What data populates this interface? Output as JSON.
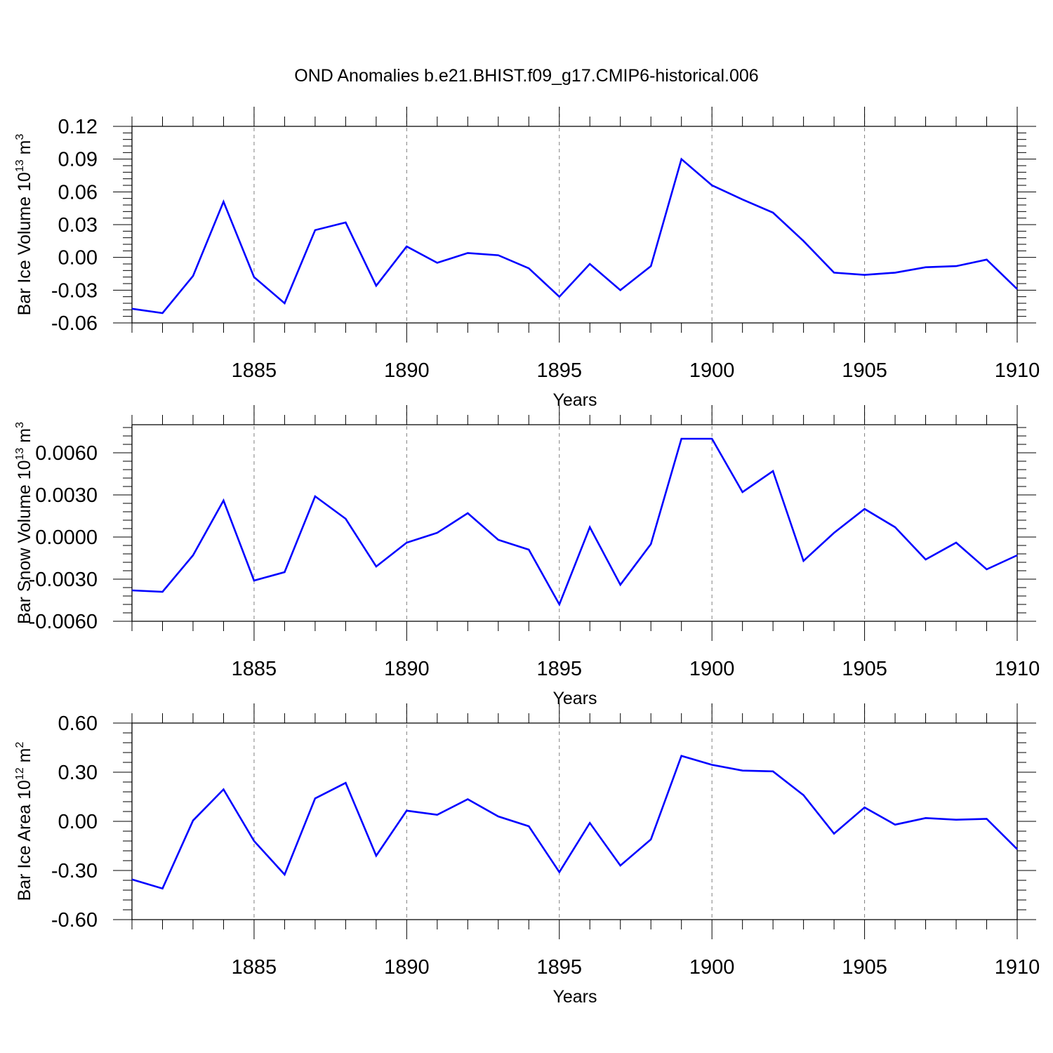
{
  "title": "OND Anomalies b.e21.BHIST.f09_g17.CMIP6-historical.006",
  "colors": {
    "line": "#0000ff",
    "frame": "#000000",
    "grid": "#7f7f7f"
  },
  "chart_data": [
    {
      "type": "line",
      "xlabel": "Years",
      "ylabel": "Bar Ice Volume 10",
      "ylabel_sup": "13",
      "ylabel_unit": " m",
      "ylabel_unit_sup": "3",
      "xlim": [
        1881,
        1910
      ],
      "ylim": [
        -0.06,
        0.12
      ],
      "yticks": [
        -0.06,
        -0.03,
        0.0,
        0.03,
        0.06,
        0.09,
        0.12
      ],
      "ytick_labels": [
        "-0.06",
        "-0.03",
        "0.00",
        "0.03",
        "0.06",
        "0.09",
        "0.12"
      ],
      "xticks": [
        1885,
        1890,
        1895,
        1900,
        1905,
        1910
      ],
      "xtick_labels": [
        "1885",
        "1890",
        "1895",
        "1900",
        "1905",
        "1910"
      ],
      "x": [
        1881,
        1882,
        1883,
        1884,
        1885,
        1886,
        1887,
        1888,
        1889,
        1890,
        1891,
        1892,
        1893,
        1894,
        1895,
        1896,
        1897,
        1898,
        1899,
        1900,
        1901,
        1902,
        1903,
        1904,
        1905,
        1906,
        1907,
        1908,
        1909,
        1910
      ],
      "values": [
        -0.047,
        -0.051,
        -0.017,
        0.051,
        -0.018,
        -0.042,
        0.025,
        0.032,
        -0.026,
        0.01,
        -0.005,
        0.004,
        0.002,
        -0.01,
        -0.036,
        -0.006,
        -0.03,
        -0.008,
        0.09,
        0.066,
        0.053,
        0.041,
        0.015,
        -0.014,
        -0.016,
        -0.014,
        -0.009,
        -0.008,
        -0.002,
        -0.029
      ]
    },
    {
      "type": "line",
      "xlabel": "Years",
      "ylabel": "Bar Snow Volume 10",
      "ylabel_sup": "13",
      "ylabel_unit": " m",
      "ylabel_unit_sup": "3",
      "xlim": [
        1881,
        1910
      ],
      "ylim": [
        -0.006,
        0.008
      ],
      "yticks": [
        -0.006,
        -0.003,
        0.0,
        0.003,
        0.006
      ],
      "ytick_labels": [
        "-0.0060",
        "-0.0030",
        "0.0000",
        "0.0030",
        "0.0060"
      ],
      "xticks": [
        1885,
        1890,
        1895,
        1900,
        1905,
        1910
      ],
      "xtick_labels": [
        "1885",
        "1890",
        "1895",
        "1900",
        "1905",
        "1910"
      ],
      "x": [
        1881,
        1882,
        1883,
        1884,
        1885,
        1886,
        1887,
        1888,
        1889,
        1890,
        1891,
        1892,
        1893,
        1894,
        1895,
        1896,
        1897,
        1898,
        1899,
        1900,
        1901,
        1902,
        1903,
        1904,
        1905,
        1906,
        1907,
        1908,
        1909,
        1910
      ],
      "values": [
        -0.0038,
        -0.0039,
        -0.0013,
        0.0026,
        -0.0031,
        -0.0025,
        0.0029,
        0.0013,
        -0.0021,
        -0.0004,
        0.0003,
        0.0017,
        -0.0002,
        -0.0009,
        -0.0048,
        0.0007,
        -0.0034,
        -0.0005,
        0.007,
        0.007,
        0.0032,
        0.0047,
        -0.0017,
        0.0003,
        0.002,
        0.0007,
        -0.0016,
        -0.0004,
        -0.0023,
        -0.0013
      ]
    },
    {
      "type": "line",
      "xlabel": "Years",
      "ylabel": "Bar Ice Area 10",
      "ylabel_sup": "12",
      "ylabel_unit": " m",
      "ylabel_unit_sup": "2",
      "xlim": [
        1881,
        1910
      ],
      "ylim": [
        -0.6,
        0.6
      ],
      "yticks": [
        -0.6,
        -0.3,
        0.0,
        0.3,
        0.6
      ],
      "ytick_labels": [
        "-0.60",
        "-0.30",
        "0.00",
        "0.30",
        "0.60"
      ],
      "xticks": [
        1885,
        1890,
        1895,
        1900,
        1905,
        1910
      ],
      "xtick_labels": [
        "1885",
        "1890",
        "1895",
        "1900",
        "1905",
        "1910"
      ],
      "x": [
        1881,
        1882,
        1883,
        1884,
        1885,
        1886,
        1887,
        1888,
        1889,
        1890,
        1891,
        1892,
        1893,
        1894,
        1895,
        1896,
        1897,
        1898,
        1899,
        1900,
        1901,
        1902,
        1903,
        1904,
        1905,
        1906,
        1907,
        1908,
        1909,
        1910
      ],
      "values": [
        -0.355,
        -0.41,
        0.005,
        0.195,
        -0.12,
        -0.325,
        0.14,
        0.235,
        -0.21,
        0.065,
        0.04,
        0.135,
        0.03,
        -0.03,
        -0.31,
        -0.01,
        -0.27,
        -0.11,
        0.4,
        0.345,
        0.31,
        0.305,
        0.16,
        -0.075,
        0.085,
        -0.02,
        0.02,
        0.01,
        0.015,
        -0.17
      ]
    }
  ]
}
